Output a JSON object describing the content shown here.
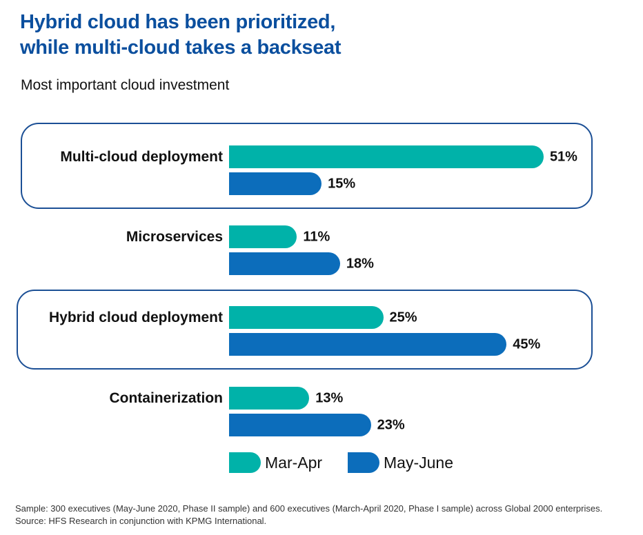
{
  "title_line1": "Hybrid cloud has been prioritized,",
  "title_line2": "while multi-cloud takes a backseat",
  "subtitle": "Most important cloud investment",
  "colors": {
    "title": "#0b4f9e",
    "mar_apr": "#00b2a9",
    "may_june": "#0c6dbb",
    "highlight_border": "#1b4f95"
  },
  "chart_data": {
    "type": "bar",
    "orientation": "horizontal",
    "title": "Most important cloud investment",
    "categories": [
      "Multi-cloud deployment",
      "Microservices",
      "Hybrid cloud deployment",
      "Containerization"
    ],
    "series": [
      {
        "name": "Mar-Apr",
        "values": [
          51,
          11,
          25,
          13
        ]
      },
      {
        "name": "May-June",
        "values": [
          15,
          18,
          45,
          23
        ]
      }
    ],
    "value_labels": [
      [
        "51%",
        "15%"
      ],
      [
        "11%",
        "18%"
      ],
      [
        "25%",
        "45%"
      ],
      [
        "13%",
        "23%"
      ]
    ],
    "unit": "%",
    "highlighted_categories": [
      "Multi-cloud deployment",
      "Hybrid cloud deployment"
    ],
    "legend_position": "bottom",
    "grid": false
  },
  "footnote": "Sample: 300 executives (May-June 2020, Phase II sample) and 600 executives (March-April 2020, Phase I sample) across Global 2000 enterprises. Source: HFS Research in conjunction with KPMG International."
}
